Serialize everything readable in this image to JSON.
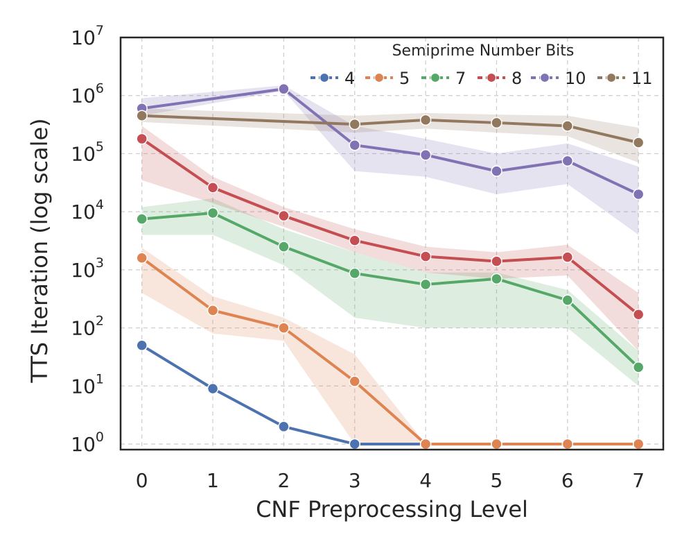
{
  "chart_data": {
    "type": "line",
    "title": "",
    "xlabel": "CNF Preprocessing Level",
    "ylabel": "TTS Iteration (log scale)",
    "yscale": "log",
    "ylim": [
      1,
      10000000
    ],
    "xlim": [
      -0.3,
      7.35
    ],
    "x": [
      0,
      1,
      2,
      3,
      4,
      5,
      6,
      7
    ],
    "x_tick_labels": [
      "0",
      "1",
      "2",
      "3",
      "4",
      "5",
      "6",
      "7"
    ],
    "y_tick_labels": [
      {
        "base": "10",
        "exp": "0"
      },
      {
        "base": "10",
        "exp": "1"
      },
      {
        "base": "10",
        "exp": "2"
      },
      {
        "base": "10",
        "exp": "3"
      },
      {
        "base": "10",
        "exp": "4"
      },
      {
        "base": "10",
        "exp": "5"
      },
      {
        "base": "10",
        "exp": "6"
      },
      {
        "base": "10",
        "exp": "7"
      }
    ],
    "grid": true,
    "legend": {
      "title": "Semiprime Number Bits",
      "placement": "top-right"
    },
    "series": [
      {
        "name": "4",
        "color": "#4c72b0",
        "x": [
          0,
          1,
          2,
          3,
          4,
          5,
          6,
          7
        ],
        "values": [
          50,
          9,
          2,
          1,
          1,
          1,
          1,
          1
        ],
        "lower": null,
        "upper": null
      },
      {
        "name": "5",
        "color": "#dd8452",
        "x": [
          0,
          1,
          2,
          3,
          4,
          5,
          6,
          7
        ],
        "values": [
          1600,
          200,
          100,
          12,
          1,
          1,
          1,
          1
        ],
        "lower": [
          400,
          80,
          60,
          1,
          1,
          1,
          1,
          1
        ],
        "upper": [
          2400,
          350,
          150,
          35,
          1,
          1,
          1,
          1
        ]
      },
      {
        "name": "7",
        "color": "#55a868",
        "x": [
          0,
          1,
          2,
          3,
          4,
          5,
          6,
          7
        ],
        "values": [
          7500,
          9500,
          2500,
          870,
          560,
          700,
          300,
          21
        ],
        "lower": [
          4000,
          4000,
          1200,
          150,
          100,
          100,
          100,
          10
        ],
        "upper": [
          12000,
          17000,
          5000,
          2000,
          900,
          900,
          450,
          40
        ]
      },
      {
        "name": "8",
        "color": "#c44e52",
        "x": [
          0,
          1,
          2,
          3,
          4,
          5,
          6,
          7
        ],
        "values": [
          180000,
          26000,
          8500,
          3200,
          1700,
          1400,
          1650,
          170
        ],
        "lower": [
          35000,
          14000,
          5500,
          2000,
          900,
          700,
          800,
          40
        ],
        "upper": [
          300000,
          40000,
          12000,
          5000,
          2500,
          2000,
          2700,
          400
        ]
      },
      {
        "name": "10",
        "color": "#8172b3",
        "x": [
          0,
          2,
          3,
          4,
          5,
          6,
          7
        ],
        "values": [
          600000,
          1300000,
          140000,
          95000,
          50000,
          75000,
          20000
        ],
        "lower": [
          450000,
          1200000,
          50000,
          40000,
          20000,
          30000,
          4000
        ],
        "upper": [
          900000,
          1500000,
          300000,
          180000,
          100000,
          150000,
          60000
        ]
      },
      {
        "name": "11",
        "color": "#937860",
        "x": [
          0,
          3,
          4,
          5,
          6,
          7
        ],
        "values": [
          450000,
          320000,
          380000,
          340000,
          300000,
          155000
        ],
        "lower": [
          350000,
          230000,
          270000,
          230000,
          200000,
          70000
        ],
        "upper": [
          600000,
          450000,
          500000,
          470000,
          450000,
          280000
        ]
      }
    ]
  }
}
